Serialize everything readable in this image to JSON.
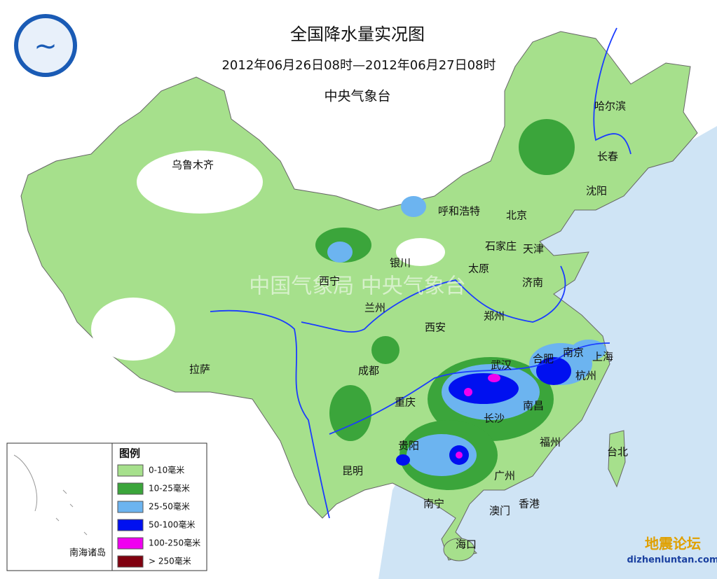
{
  "header": {
    "title": "全国降水量实况图",
    "period": "2012年06月26日08时—2012年06月27日08时",
    "agency": "中央气象台"
  },
  "cities": [
    "乌鲁木齐",
    "呼和浩特",
    "北京",
    "哈尔滨",
    "长春",
    "沈阳",
    "石家庄",
    "天津",
    "太原",
    "济南",
    "银川",
    "西宁",
    "兰州",
    "西安",
    "郑州",
    "拉萨",
    "成都",
    "重庆",
    "武汉",
    "合肥",
    "南京",
    "上海",
    "杭州",
    "南昌",
    "长沙",
    "贵阳",
    "昆明",
    "福州",
    "台北",
    "广州",
    "南宁",
    "香港",
    "澳门",
    "海口"
  ],
  "legend": {
    "title": "图例",
    "items": [
      {
        "label": "0-10毫米",
        "color": "#a6e08c"
      },
      {
        "label": "10-25毫米",
        "color": "#3ba53b"
      },
      {
        "label": "25-50毫米",
        "color": "#6cb4f0"
      },
      {
        "label": "50-100毫米",
        "color": "#0010f0"
      },
      {
        "label": "100-250毫米",
        "color": "#f000f0"
      },
      {
        "label": "> 250毫米",
        "color": "#800010"
      }
    ]
  },
  "inset_label": "南海诸岛",
  "watermark": "中国气象局 中央气象台",
  "site": {
    "name": "地震论坛",
    "url": "dizhenluntan.com"
  }
}
